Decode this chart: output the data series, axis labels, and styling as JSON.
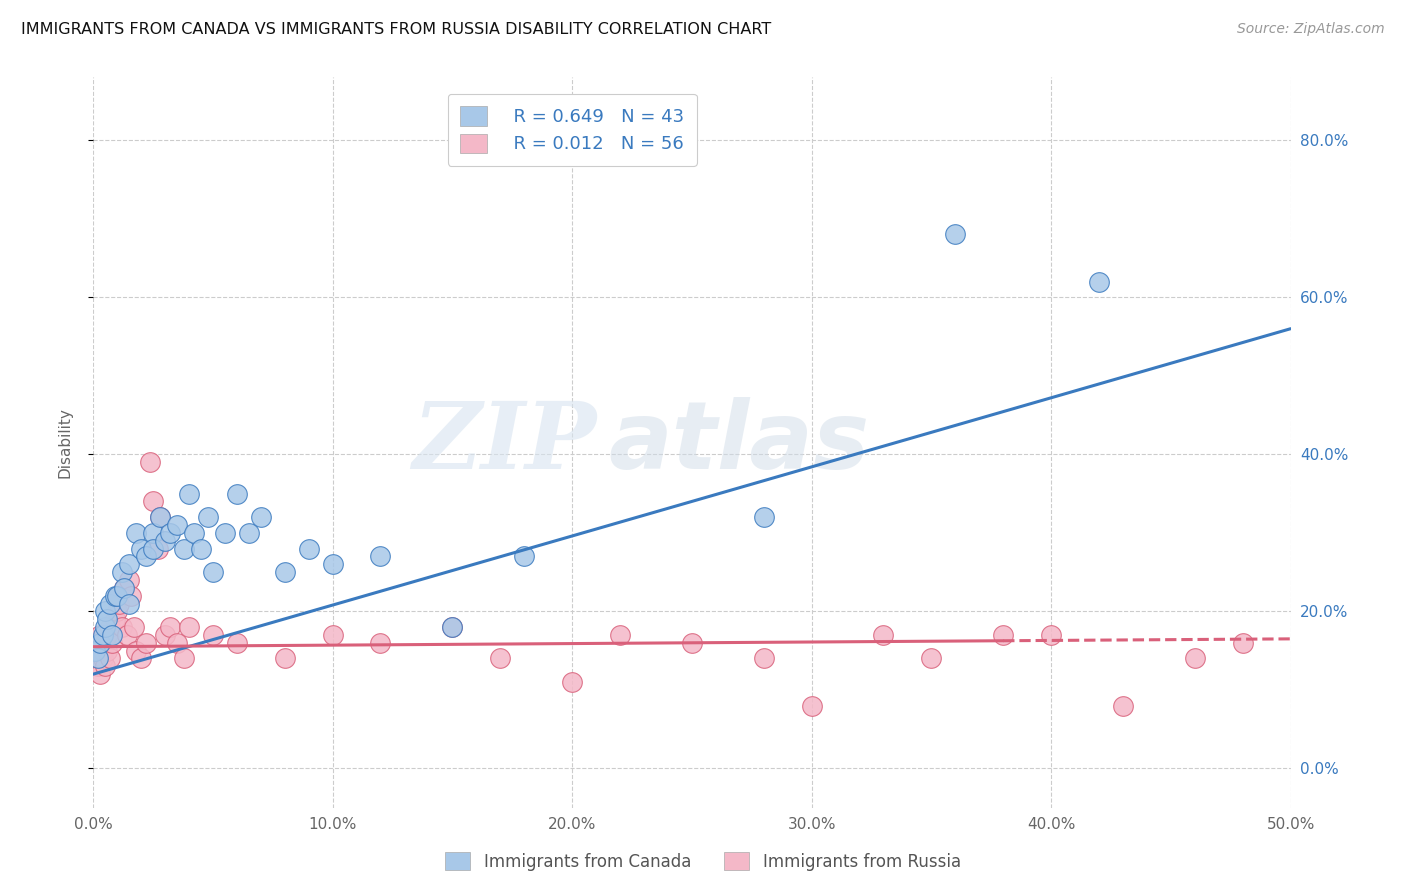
{
  "title": "IMMIGRANTS FROM CANADA VS IMMIGRANTS FROM RUSSIA DISABILITY CORRELATION CHART",
  "source": "Source: ZipAtlas.com",
  "ylabel": "Disability",
  "legend_r1": "R = 0.649",
  "legend_n1": "N = 43",
  "legend_r2": "R = 0.012",
  "legend_n2": "N = 56",
  "color_canada": "#a8c8e8",
  "color_russia": "#f4b8c8",
  "color_line_canada": "#3a7abf",
  "color_line_russia": "#d9607a",
  "watermark_zip": "ZIP",
  "watermark_atlas": "atlas",
  "canada_scatter_x": [
    0.001,
    0.002,
    0.003,
    0.004,
    0.005,
    0.005,
    0.006,
    0.007,
    0.008,
    0.009,
    0.01,
    0.012,
    0.013,
    0.015,
    0.015,
    0.018,
    0.02,
    0.022,
    0.025,
    0.025,
    0.028,
    0.03,
    0.032,
    0.035,
    0.038,
    0.04,
    0.042,
    0.045,
    0.048,
    0.05,
    0.055,
    0.06,
    0.065,
    0.07,
    0.08,
    0.09,
    0.1,
    0.12,
    0.15,
    0.18,
    0.28,
    0.36,
    0.42
  ],
  "canada_scatter_y": [
    0.15,
    0.14,
    0.16,
    0.17,
    0.18,
    0.2,
    0.19,
    0.21,
    0.17,
    0.22,
    0.22,
    0.25,
    0.23,
    0.21,
    0.26,
    0.3,
    0.28,
    0.27,
    0.3,
    0.28,
    0.32,
    0.29,
    0.3,
    0.31,
    0.28,
    0.35,
    0.3,
    0.28,
    0.32,
    0.25,
    0.3,
    0.35,
    0.3,
    0.32,
    0.25,
    0.28,
    0.26,
    0.27,
    0.18,
    0.27,
    0.32,
    0.68,
    0.62
  ],
  "russia_scatter_x": [
    0.001,
    0.001,
    0.002,
    0.002,
    0.003,
    0.003,
    0.004,
    0.004,
    0.005,
    0.005,
    0.006,
    0.006,
    0.007,
    0.007,
    0.008,
    0.009,
    0.01,
    0.01,
    0.011,
    0.012,
    0.013,
    0.014,
    0.015,
    0.016,
    0.017,
    0.018,
    0.02,
    0.022,
    0.024,
    0.025,
    0.027,
    0.028,
    0.03,
    0.032,
    0.035,
    0.038,
    0.04,
    0.05,
    0.06,
    0.08,
    0.1,
    0.12,
    0.15,
    0.17,
    0.2,
    0.22,
    0.25,
    0.28,
    0.3,
    0.33,
    0.35,
    0.38,
    0.4,
    0.43,
    0.46,
    0.48
  ],
  "russia_scatter_y": [
    0.14,
    0.16,
    0.13,
    0.15,
    0.12,
    0.17,
    0.14,
    0.15,
    0.16,
    0.13,
    0.17,
    0.15,
    0.18,
    0.14,
    0.16,
    0.19,
    0.2,
    0.22,
    0.21,
    0.18,
    0.23,
    0.17,
    0.24,
    0.22,
    0.18,
    0.15,
    0.14,
    0.16,
    0.39,
    0.34,
    0.28,
    0.32,
    0.17,
    0.18,
    0.16,
    0.14,
    0.18,
    0.17,
    0.16,
    0.14,
    0.17,
    0.16,
    0.18,
    0.14,
    0.11,
    0.17,
    0.16,
    0.14,
    0.08,
    0.17,
    0.14,
    0.17,
    0.17,
    0.08,
    0.14,
    0.16
  ],
  "xlim": [
    0.0,
    0.5
  ],
  "ylim": [
    -0.05,
    0.88
  ],
  "y_ticks": [
    0.0,
    0.2,
    0.4,
    0.6,
    0.8
  ],
  "x_ticks": [
    0.0,
    0.1,
    0.2,
    0.3,
    0.4,
    0.5
  ],
  "canada_line_x": [
    0.0,
    0.5
  ],
  "canada_line_y": [
    0.12,
    0.56
  ],
  "russia_line_x": [
    0.0,
    0.5
  ],
  "russia_line_y": [
    0.155,
    0.165
  ]
}
